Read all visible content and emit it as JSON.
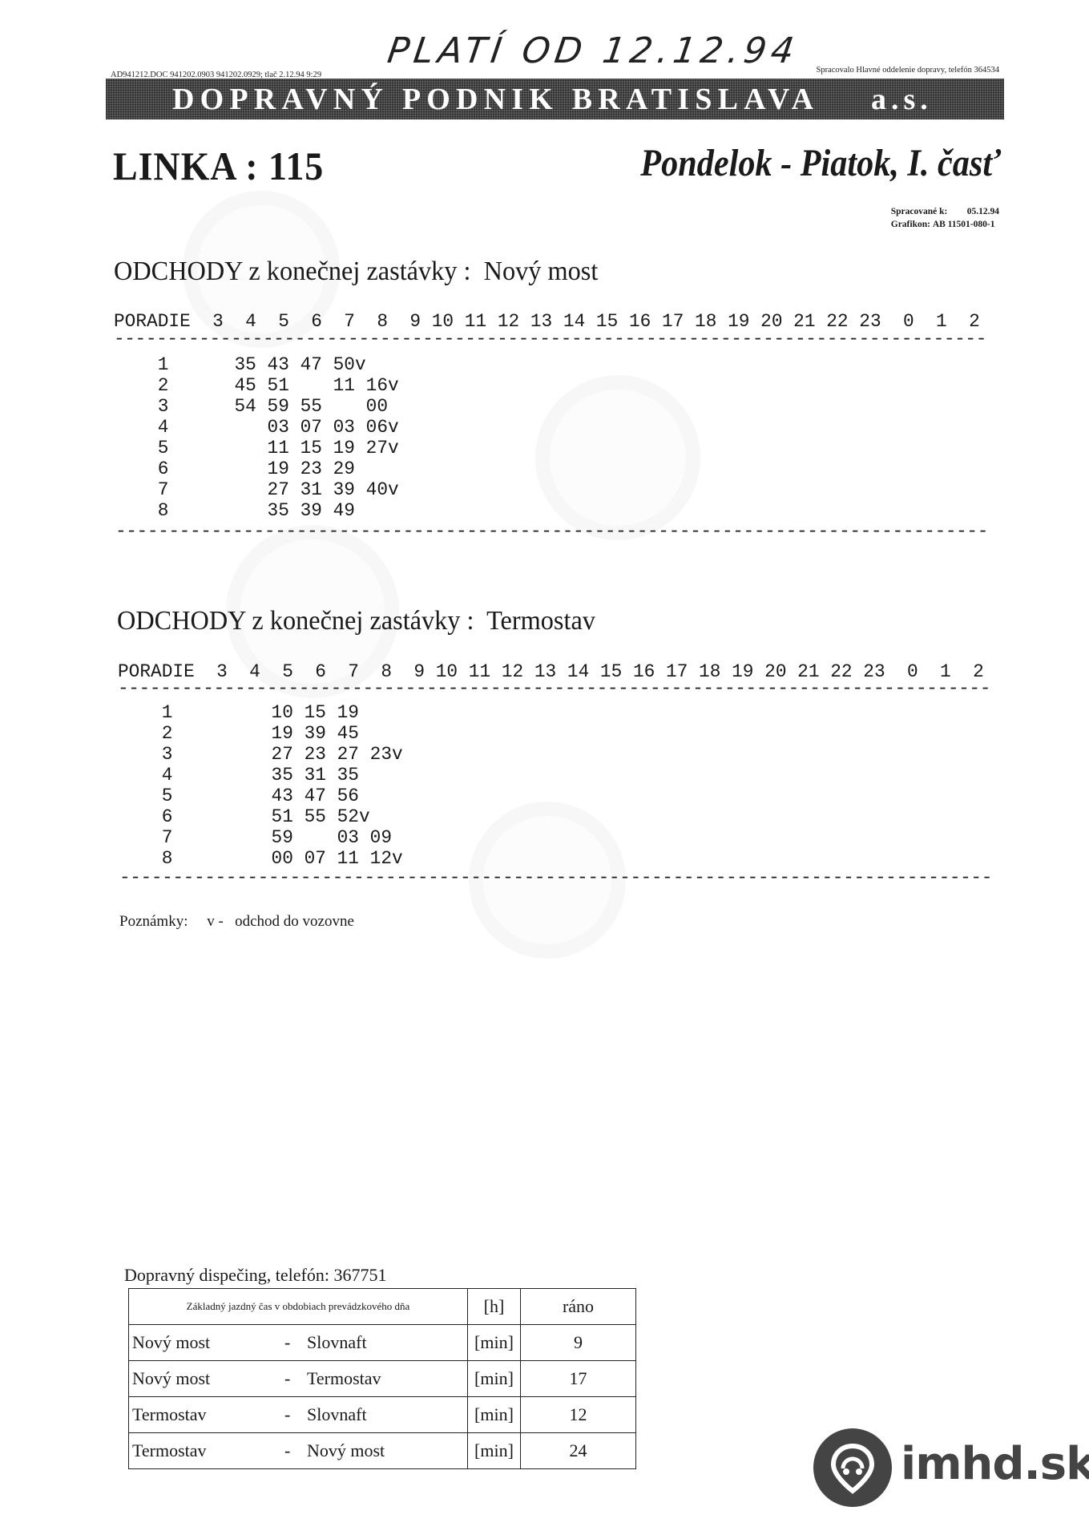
{
  "handwritten_note": "PLATÍ OD 12.12.94",
  "file_info": "AD941212.DOC 941202.0903 941202.0929; tlač 2.12.94 9:29",
  "processed_by": "Spracovalo Hlavné oddelenie dopravy, telefón 364534",
  "company": {
    "name": "DOPRAVNÝ PODNIK BRATISLAVA",
    "suffix": "a.s."
  },
  "line_title": "LINKA : 115",
  "days_title": "Pondelok - Piatok, I. časť",
  "meta": {
    "processed_label": "Spracované k:",
    "processed_value": "05.12.94",
    "schedule_label": "Grafikon:",
    "schedule_value": "AB 11501-080-1"
  },
  "hours_label": "PORADIE",
  "hours": [
    3,
    4,
    5,
    6,
    7,
    8,
    9,
    10,
    11,
    12,
    13,
    14,
    15,
    16,
    17,
    18,
    19,
    20,
    21,
    22,
    23,
    0,
    1,
    2
  ],
  "sections": [
    {
      "title_prefix": "ODCHODY z konečnej zastávky :",
      "stop": "Nový most",
      "rows": [
        {
          "no": "1",
          "cells": [
            "",
            "35",
            "43",
            "47",
            "50v"
          ]
        },
        {
          "no": "2",
          "cells": [
            "",
            "45",
            "51",
            "",
            "11",
            "16v"
          ]
        },
        {
          "no": "3",
          "cells": [
            "",
            "54",
            "59",
            "55",
            "",
            "00"
          ]
        },
        {
          "no": "4",
          "cells": [
            "",
            "",
            "03",
            "07",
            "03",
            "06v"
          ]
        },
        {
          "no": "5",
          "cells": [
            "",
            "",
            "11",
            "15",
            "19",
            "27v"
          ]
        },
        {
          "no": "6",
          "cells": [
            "",
            "",
            "19",
            "23",
            "29"
          ]
        },
        {
          "no": "7",
          "cells": [
            "",
            "",
            "27",
            "31",
            "39",
            "40v"
          ]
        },
        {
          "no": "8",
          "cells": [
            "",
            "",
            "35",
            "39",
            "49"
          ]
        }
      ]
    },
    {
      "title_prefix": "ODCHODY z konečnej zastávky :",
      "stop": "Termostav",
      "rows": [
        {
          "no": "1",
          "cells": [
            "",
            "",
            "10",
            "15",
            "19"
          ]
        },
        {
          "no": "2",
          "cells": [
            "",
            "",
            "19",
            "39",
            "45"
          ]
        },
        {
          "no": "3",
          "cells": [
            "",
            "",
            "27",
            "23",
            "27",
            "23v"
          ]
        },
        {
          "no": "4",
          "cells": [
            "",
            "",
            "35",
            "31",
            "35"
          ]
        },
        {
          "no": "5",
          "cells": [
            "",
            "",
            "43",
            "47",
            "56"
          ]
        },
        {
          "no": "6",
          "cells": [
            "",
            "",
            "51",
            "55",
            "52v"
          ]
        },
        {
          "no": "7",
          "cells": [
            "",
            "",
            "59",
            "",
            "03",
            "09"
          ]
        },
        {
          "no": "8",
          "cells": [
            "",
            "",
            "00",
            "07",
            "11",
            "12v"
          ]
        }
      ]
    }
  ],
  "notes": {
    "label": "Poznámky:",
    "key": "v -",
    "text": "odchod do vozovne"
  },
  "dispatch": "Dopravný dispečing, telefón:  367751",
  "travel_table": {
    "header": {
      "title": "Základný jazdný čas v obdobiach prevádzkového dňa",
      "unit": "[h]",
      "period": "ráno"
    },
    "rows": [
      {
        "from": "Nový most",
        "sep": "-",
        "to": "Slovnaft",
        "unit": "[min]",
        "value": "9"
      },
      {
        "from": "Nový most",
        "sep": "-",
        "to": "Termostav",
        "unit": "[min]",
        "value": "17"
      },
      {
        "from": "Termostav",
        "sep": "-",
        "to": "Slovnaft",
        "unit": "[min]",
        "value": "12"
      },
      {
        "from": "Termostav",
        "sep": "-",
        "to": "Nový most",
        "unit": "[min]",
        "value": "24"
      }
    ]
  },
  "watermark": {
    "brand": "imhd.sk",
    "icon": "bus-pin-logo-icon",
    "color": "#444444"
  }
}
